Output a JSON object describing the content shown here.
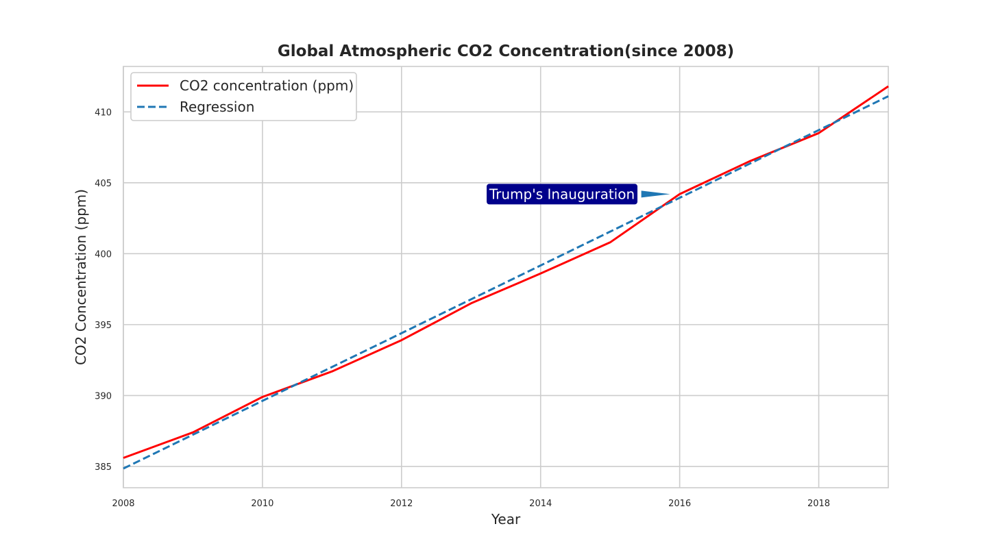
{
  "chart_data": {
    "type": "line",
    "title": "Global Atmospheric CO2 Concentration(since 2008)",
    "xlabel": "Year",
    "ylabel": "CO2 Concentration (ppm)",
    "xlim": [
      2008,
      2019
    ],
    "ylim": [
      383.5,
      413.2
    ],
    "xticks": [
      "2008",
      "2010",
      "2012",
      "2014",
      "2016",
      "2018"
    ],
    "yticks": [
      "385",
      "390",
      "395",
      "400",
      "405",
      "410"
    ],
    "grid": true,
    "legend_position": "upper-left",
    "series": [
      {
        "name": "CO2 concentration (ppm)",
        "color": "#ff0000",
        "style": "solid",
        "x": [
          2008,
          2009,
          2010,
          2011,
          2012,
          2013,
          2014,
          2015,
          2016,
          2017,
          2018,
          2019
        ],
        "y": [
          385.6,
          387.4,
          389.9,
          391.7,
          393.9,
          396.5,
          398.6,
          400.8,
          404.2,
          406.5,
          408.5,
          411.8
        ]
      },
      {
        "name": "Regression",
        "color": "#1f77b4",
        "style": "dashed",
        "x": [
          2008,
          2019
        ],
        "y": [
          384.85,
          411.1
        ]
      }
    ],
    "annotations": [
      {
        "text": "Trump's Inauguration",
        "x": 2016,
        "y": 404.2,
        "box_color": "#00008b",
        "arrow_color": "#1f77b4"
      }
    ]
  }
}
